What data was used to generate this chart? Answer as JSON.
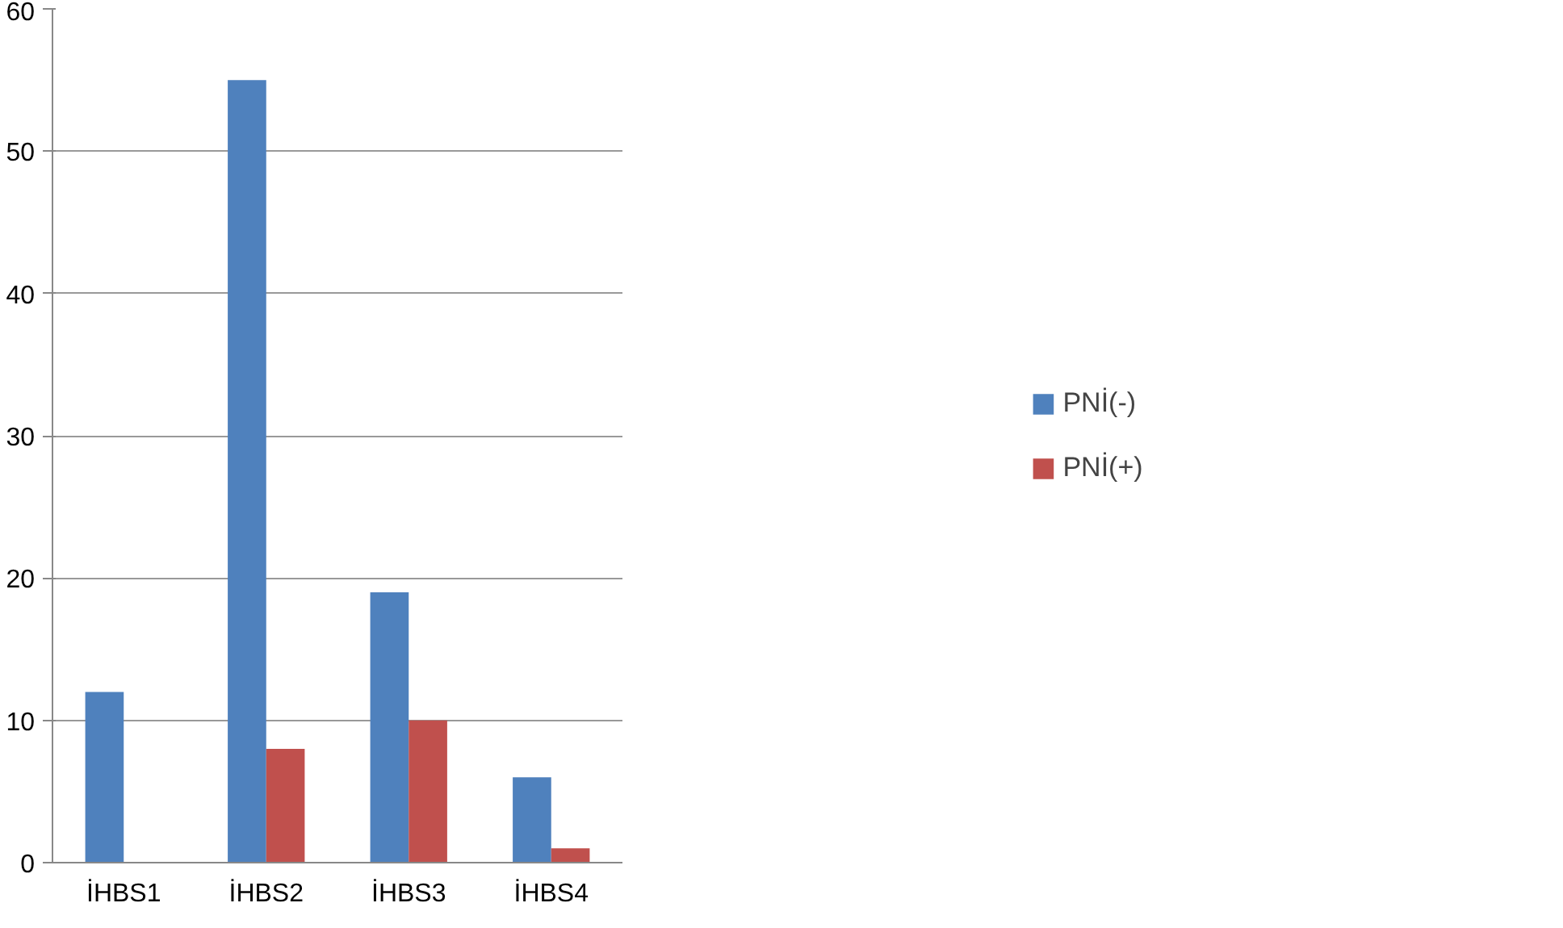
{
  "chart_data": {
    "type": "bar",
    "categories": [
      "İHBS1",
      "İHBS2",
      "İHBS3",
      "İHBS4"
    ],
    "series": [
      {
        "name": "PNİ(-)",
        "color": "#4f81bd",
        "values": [
          12,
          55,
          19,
          6
        ]
      },
      {
        "name": "PNİ(+)",
        "color": "#c0504d",
        "values": [
          0,
          8,
          10,
          1
        ]
      }
    ],
    "ylim": [
      0,
      60
    ],
    "yticks": [
      0,
      10,
      20,
      30,
      40,
      50,
      60
    ],
    "grid": "y",
    "legend": "right"
  }
}
